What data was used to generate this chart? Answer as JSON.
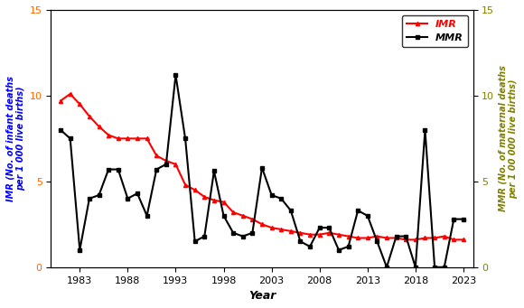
{
  "years": [
    1981,
    1982,
    1983,
    1984,
    1985,
    1986,
    1987,
    1988,
    1989,
    1990,
    1991,
    1992,
    1993,
    1994,
    1995,
    1996,
    1997,
    1998,
    1999,
    2000,
    2001,
    2002,
    2003,
    2004,
    2005,
    2006,
    2007,
    2008,
    2009,
    2010,
    2011,
    2012,
    2013,
    2014,
    2015,
    2016,
    2017,
    2018,
    2019,
    2020,
    2021,
    2022,
    2023
  ],
  "IMR": [
    9.7,
    10.1,
    9.5,
    8.8,
    8.2,
    7.7,
    7.5,
    7.5,
    7.5,
    7.5,
    6.5,
    6.2,
    6.0,
    4.8,
    4.5,
    4.1,
    3.9,
    3.8,
    3.2,
    3.0,
    2.8,
    2.5,
    2.3,
    2.2,
    2.1,
    2.0,
    1.9,
    1.9,
    2.0,
    1.9,
    1.8,
    1.7,
    1.7,
    1.8,
    1.7,
    1.7,
    1.6,
    1.6,
    1.7,
    1.7,
    1.8,
    1.6,
    1.6
  ],
  "MMR": [
    8.0,
    7.5,
    1.0,
    4.0,
    4.2,
    5.7,
    5.7,
    4.0,
    4.3,
    3.0,
    5.7,
    6.0,
    11.2,
    7.5,
    1.5,
    1.8,
    5.6,
    3.0,
    2.0,
    1.8,
    2.0,
    5.8,
    4.2,
    4.0,
    3.3,
    1.5,
    1.2,
    2.3,
    2.3,
    1.0,
    1.2,
    3.3,
    3.0,
    1.5,
    0.0,
    1.8,
    1.8,
    0.0,
    8.0,
    0.0,
    0.0,
    2.8,
    2.8
  ],
  "imr_color": "#ff0000",
  "mmr_color": "#000000",
  "imr_label_color": "#0000ff",
  "mmr_label_color": "#808000",
  "imr_tick_color": "#ff6600",
  "mmr_tick_color": "#808000",
  "ylim": [
    0,
    15
  ],
  "xlim": [
    1980,
    2024
  ],
  "xlabel": "Year",
  "ylabel_left": "IMR (No. of infant deaths\nper 1 000 live births)",
  "ylabel_right": "MMR (No. of maternal deaths\nper 1 00 000 live births)",
  "xticks": [
    1983,
    1988,
    1993,
    1998,
    2003,
    2008,
    2013,
    2018,
    2023
  ],
  "yticks": [
    0,
    5,
    10,
    15
  ],
  "legend_labels": [
    "IMR",
    "MMR"
  ],
  "legend_imr_color": "#ff0000",
  "legend_mmr_color": "#000000",
  "background_color": "#ffffff"
}
